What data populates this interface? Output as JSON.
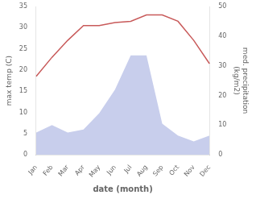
{
  "chart_data": {
    "type": "line",
    "categories": [
      "Jan",
      "Feb",
      "Mar",
      "Apr",
      "May",
      "Jun",
      "Jul",
      "Aug",
      "Sep",
      "Oct",
      "Nov",
      "Dec"
    ],
    "series": [
      {
        "type": "area",
        "color": "#c8ceec",
        "axis": "y2",
        "values": [
          7.5,
          10.0,
          7.5,
          8.5,
          14.0,
          22.0,
          33.5,
          33.5,
          10.5,
          6.5,
          4.5,
          6.5
        ]
      },
      {
        "type": "line",
        "color": "#c85a5a",
        "values": [
          18.5,
          23.0,
          27.0,
          30.5,
          30.5,
          31.2,
          31.5,
          33.0,
          33.0,
          31.5,
          27.0,
          21.5
        ]
      }
    ],
    "xlabel": "date (month)",
    "ylabel": "max temp (C)",
    "y2label": "med. precipitation\n(kg/m2)",
    "ylim": [
      0,
      35
    ],
    "yticks": [
      0,
      5,
      10,
      15,
      20,
      25,
      30,
      35
    ],
    "y2lim": [
      0,
      50
    ],
    "y2ticks": [
      0,
      10,
      20,
      30,
      40,
      50
    ],
    "grid": false
  }
}
